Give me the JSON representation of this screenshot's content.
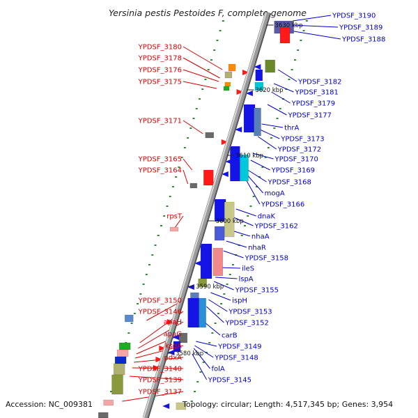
{
  "title": "Yersinia pestis Pestoides F, complete genome",
  "footer": {
    "accession": "Accession: NC_009381",
    "summary": "Topology: circular; Length: 4,517,345 bp; Genes: 3,954"
  },
  "colors": {
    "left_label": "#d40000",
    "right_label": "#0000c8",
    "backbone": "#9a9a9a",
    "tick": "#2e8b2e"
  },
  "scale_marks": [
    "3630 kbp",
    "3620 kbp",
    "3610 kbp",
    "3600 kbp",
    "3590 kbp",
    "3580 kbp"
  ],
  "left_labels": [
    "YPDSF_3180",
    "YPDSF_3178",
    "YPDSF_3176",
    "YPDSF_3175",
    "YPDSF_3171",
    "YPDSF_3165",
    "YPDSF_3164",
    "rpsT",
    "YPDSF_3150",
    "YPDSF_3146",
    "apaH",
    "apaG",
    "ksgA",
    "pdxA",
    "YPDSF_3140",
    "YPDSF_3139",
    "YPDSF_3137"
  ],
  "right_labels": [
    "YPDSF_3190",
    "YPDSF_3189",
    "YPDSF_3188",
    "YPDSF_3182",
    "YPDSF_3181",
    "YPDSF_3179",
    "YPDSF_3177",
    "thrA",
    "YPDSF_3173",
    "YPDSF_3172",
    "YPDSF_3170",
    "YPDSF_3169",
    "YPDSF_3168",
    "mogA",
    "YPDSF_3166",
    "dnaK",
    "YPDSF_3162",
    "nhaA",
    "nhaR",
    "YPDSF_3158",
    "ileS",
    "lspA",
    "YPDSF_3155",
    "ispH",
    "YPDSF_3153",
    "YPDSF_3152",
    "carB",
    "YPDSF_3149",
    "YPDSF_3148",
    "folA",
    "YPDSF_3145"
  ]
}
